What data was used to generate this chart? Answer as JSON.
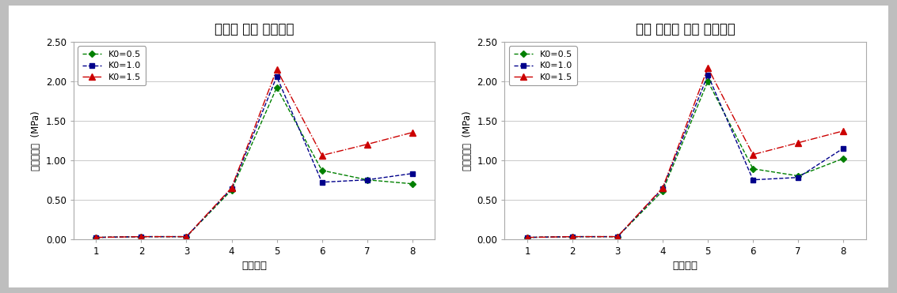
{
  "chart1_title": "강섬유 보강 숏크리트",
  "chart2_title": "섬유 그물망 보강 숏크리트",
  "xlabel": "시공단계",
  "ylabel": "휘압축응력  (MPa)",
  "x": [
    1,
    2,
    3,
    4,
    5,
    6,
    7,
    8
  ],
  "chart1": {
    "K0_05": [
      0.02,
      0.03,
      0.03,
      0.62,
      1.92,
      0.87,
      0.75,
      0.7
    ],
    "K0_10": [
      0.02,
      0.03,
      0.03,
      0.64,
      2.06,
      0.72,
      0.75,
      0.83
    ],
    "K0_15": [
      0.02,
      0.03,
      0.03,
      0.65,
      2.15,
      1.06,
      1.2,
      1.35
    ]
  },
  "chart2": {
    "K0_05": [
      0.02,
      0.03,
      0.03,
      0.61,
      2.0,
      0.89,
      0.8,
      1.02
    ],
    "K0_10": [
      0.02,
      0.03,
      0.03,
      0.64,
      2.08,
      0.75,
      0.78,
      1.15
    ],
    "K0_15": [
      0.02,
      0.03,
      0.03,
      0.65,
      2.17,
      1.07,
      1.22,
      1.37
    ]
  },
  "color_05": "#008000",
  "color_10": "#00008B",
  "color_15": "#CC0000",
  "ylim": [
    0.0,
    2.5
  ],
  "yticks": [
    0.0,
    0.5,
    1.0,
    1.5,
    2.0,
    2.5
  ],
  "fig_bg": "#d8d8d8",
  "plot_bg": "#ffffff",
  "legend_labels": [
    "K0=0.5",
    "K0=1.0",
    "K0=1.5"
  ]
}
